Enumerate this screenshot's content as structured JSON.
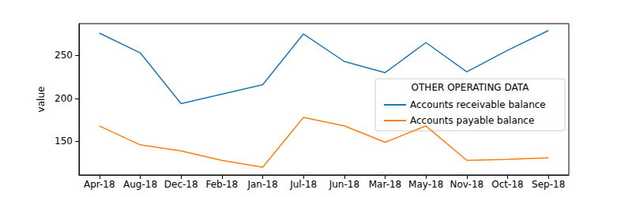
{
  "chart_data": {
    "type": "line",
    "y_label": "value",
    "legend_title": "OTHER OPERATING DATA",
    "categories": [
      "Apr-18",
      "Aug-18",
      "Dec-18",
      "Feb-18",
      "Jan-18",
      "Jul-18",
      "Jun-18",
      "Mar-18",
      "May-18",
      "Nov-18",
      "Oct-18",
      "Sep-18"
    ],
    "series": [
      {
        "name": "Accounts receivable balance",
        "color": "#1f77b4",
        "values": [
          276,
          253,
          194,
          205,
          216,
          275,
          243,
          230,
          265,
          231,
          256,
          279
        ]
      },
      {
        "name": "Accounts payable balance",
        "color": "#ff7f0e",
        "values": [
          168,
          146,
          139,
          128,
          120,
          178,
          168,
          149,
          168,
          128,
          129,
          131
        ]
      }
    ],
    "ylim": [
      111,
      287
    ],
    "yticks": [
      150,
      200,
      250
    ],
    "grid": false,
    "legend": "right"
  }
}
